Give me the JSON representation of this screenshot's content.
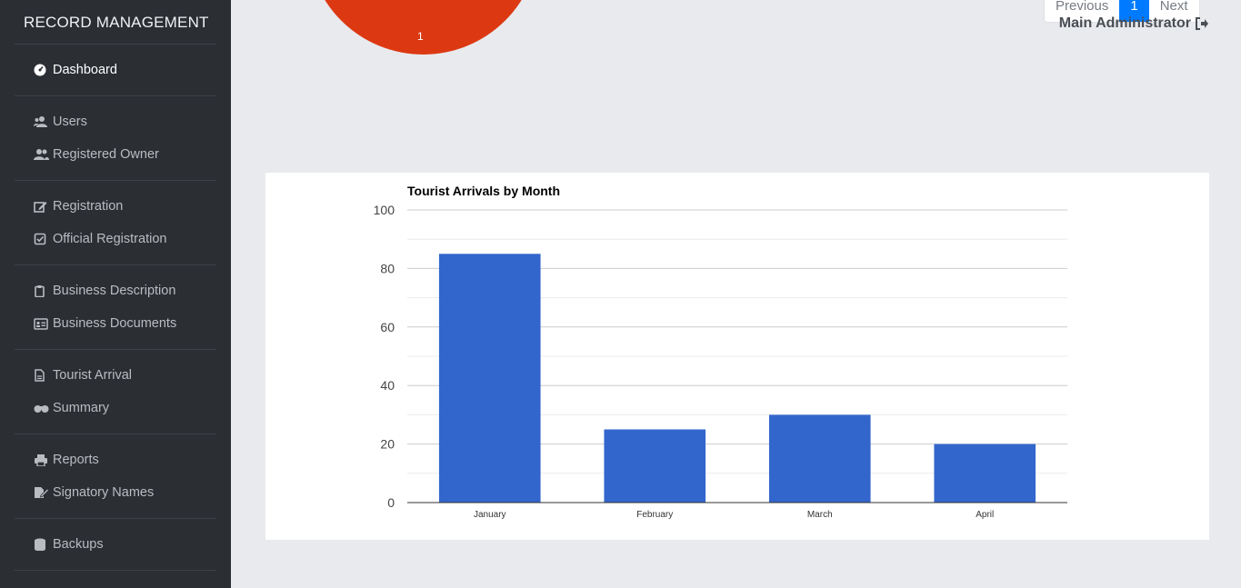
{
  "sidebar": {
    "brand": "RECORD MANAGEMENT",
    "groups": [
      {
        "items": [
          {
            "label": "Dashboard",
            "icon": "dashboard-icon",
            "active": true
          }
        ]
      },
      {
        "items": [
          {
            "label": "Users",
            "icon": "users-icon"
          },
          {
            "label": "Registered Owner",
            "icon": "user-friends-icon"
          }
        ]
      },
      {
        "items": [
          {
            "label": "Registration",
            "icon": "edit-icon"
          },
          {
            "label": "Official Registration",
            "icon": "check-square-icon"
          }
        ]
      },
      {
        "items": [
          {
            "label": "Business Description",
            "icon": "clipboard-icon"
          },
          {
            "label": "Business Documents",
            "icon": "id-card-icon"
          }
        ]
      },
      {
        "items": [
          {
            "label": "Tourist Arrival",
            "icon": "file-icon"
          },
          {
            "label": "Summary",
            "icon": "binoculars-icon"
          }
        ]
      },
      {
        "items": [
          {
            "label": "Reports",
            "icon": "print-icon"
          },
          {
            "label": "Signatory Names",
            "icon": "signature-icon"
          }
        ]
      },
      {
        "items": [
          {
            "label": "Backups",
            "icon": "database-icon"
          }
        ]
      }
    ]
  },
  "header": {
    "pagination": {
      "previous": "Previous",
      "current": "1",
      "next": "Next"
    },
    "user": "Main Administrator",
    "logout_icon": "sign-out-icon"
  },
  "pie_chart": {
    "slice_label": "1",
    "color": "#dc3912"
  },
  "chart_data": {
    "type": "bar",
    "title": "Tourist Arrivals by Month",
    "categories": [
      "January",
      "February",
      "March",
      "April"
    ],
    "values": [
      85,
      25,
      30,
      20
    ],
    "ylim": [
      0,
      100
    ],
    "yticks": [
      0,
      20,
      40,
      60,
      80,
      100
    ],
    "grid": true,
    "bar_color": "#3366cc",
    "xlabel": "",
    "ylabel": ""
  }
}
